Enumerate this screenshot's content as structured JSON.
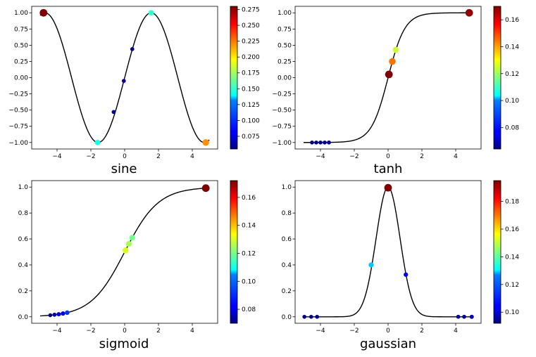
{
  "chart_data": [
    {
      "type": "line",
      "title": "",
      "xlabel": "sine",
      "ylabel": "",
      "function": "sine",
      "xlim": [
        -5.5,
        5.5
      ],
      "ylim": [
        -1.1,
        1.1
      ],
      "xticks": [
        -4,
        -2,
        0,
        2,
        4
      ],
      "yticks": [
        -1.0,
        -0.75,
        -0.5,
        -0.25,
        0.0,
        0.25,
        0.5,
        0.75,
        1.0
      ],
      "ytick_labels": [
        "−1.00",
        "−0.75",
        "−0.50",
        "−0.25",
        "0.00",
        "0.25",
        "0.50",
        "0.75",
        "1.00"
      ],
      "xtick_labels": [
        "−4",
        "−2",
        "0",
        "2",
        "4"
      ],
      "curve_range": [
        -5,
        5
      ],
      "colorbar": {
        "min": 0.055,
        "max": 0.28,
        "ticks": [
          0.075,
          0.1,
          0.125,
          0.15,
          0.175,
          0.2,
          0.225,
          0.25,
          0.275
        ],
        "tick_labels": [
          "0.075",
          "0.100",
          "0.125",
          "0.150",
          "0.175",
          "0.200",
          "0.225",
          "0.250",
          "0.275"
        ],
        "colormap": "jet"
      },
      "points": [
        {
          "x": -4.8,
          "y": 1.0,
          "c": 0.28
        },
        {
          "x": -1.6,
          "y": -1.0,
          "c": 0.145
        },
        {
          "x": -0.65,
          "y": -0.53,
          "c": 0.062
        },
        {
          "x": -0.05,
          "y": -0.05,
          "c": 0.06
        },
        {
          "x": 0.45,
          "y": 0.44,
          "c": 0.06
        },
        {
          "x": 1.57,
          "y": 1.0,
          "c": 0.15
        },
        {
          "x": 4.8,
          "y": -1.0,
          "c": 0.22
        }
      ]
    },
    {
      "type": "line",
      "title": "",
      "xlabel": "tanh",
      "ylabel": "",
      "function": "tanh",
      "xlim": [
        -5.5,
        5.5
      ],
      "ylim": [
        -1.1,
        1.1
      ],
      "xticks": [
        -4,
        -2,
        0,
        2,
        4
      ],
      "yticks": [
        -1.0,
        -0.75,
        -0.5,
        -0.25,
        0.0,
        0.25,
        0.5,
        0.75,
        1.0
      ],
      "ytick_labels": [
        "−1.00",
        "−0.75",
        "−0.50",
        "−0.25",
        "0.00",
        "0.25",
        "0.50",
        "0.75",
        "1.00"
      ],
      "xtick_labels": [
        "−4",
        "−2",
        "0",
        "2",
        "4"
      ],
      "curve_range": [
        -5,
        5
      ],
      "colorbar": {
        "min": 0.064,
        "max": 0.17,
        "ticks": [
          0.08,
          0.1,
          0.12,
          0.14,
          0.16
        ],
        "tick_labels": [
          "0.08",
          "0.10",
          "0.12",
          "0.14",
          "0.16"
        ],
        "colormap": "jet"
      },
      "points": [
        {
          "x": -4.5,
          "y": -1.0,
          "c": 0.064
        },
        {
          "x": -4.25,
          "y": -1.0,
          "c": 0.064
        },
        {
          "x": -4.0,
          "y": -1.0,
          "c": 0.065
        },
        {
          "x": -3.75,
          "y": -1.0,
          "c": 0.065
        },
        {
          "x": -3.5,
          "y": -1.0,
          "c": 0.066
        },
        {
          "x": 0.05,
          "y": 0.05,
          "c": 0.17
        },
        {
          "x": 0.25,
          "y": 0.25,
          "c": 0.145
        },
        {
          "x": 0.45,
          "y": 0.43,
          "c": 0.125
        },
        {
          "x": 4.8,
          "y": 1.0,
          "c": 0.168
        }
      ]
    },
    {
      "type": "line",
      "title": "",
      "xlabel": "sigmoid",
      "ylabel": "",
      "function": "sigmoid",
      "xlim": [
        -5.5,
        5.5
      ],
      "ylim": [
        -0.05,
        1.05
      ],
      "xticks": [
        -4,
        -2,
        0,
        2,
        4
      ],
      "yticks": [
        0.0,
        0.2,
        0.4,
        0.6,
        0.8,
        1.0
      ],
      "ytick_labels": [
        "0.0",
        "0.2",
        "0.4",
        "0.6",
        "0.8",
        "1.0"
      ],
      "xtick_labels": [
        "−4",
        "−2",
        "0",
        "2",
        "4"
      ],
      "curve_range": [
        -5,
        5
      ],
      "colorbar": {
        "min": 0.07,
        "max": 0.172,
        "ticks": [
          0.08,
          0.1,
          0.12,
          0.14,
          0.16
        ],
        "tick_labels": [
          "0.08",
          "0.10",
          "0.12",
          "0.14",
          "0.16"
        ],
        "colormap": "jet"
      },
      "points": [
        {
          "x": -4.4,
          "y": 0.012,
          "c": 0.07
        },
        {
          "x": -4.15,
          "y": 0.016,
          "c": 0.074
        },
        {
          "x": -3.9,
          "y": 0.02,
          "c": 0.078
        },
        {
          "x": -3.65,
          "y": 0.025,
          "c": 0.082
        },
        {
          "x": -3.4,
          "y": 0.032,
          "c": 0.088
        },
        {
          "x": 0.05,
          "y": 0.512,
          "c": 0.13
        },
        {
          "x": 0.25,
          "y": 0.562,
          "c": 0.125
        },
        {
          "x": 0.45,
          "y": 0.61,
          "c": 0.12
        },
        {
          "x": 4.8,
          "y": 0.992,
          "c": 0.172
        }
      ]
    },
    {
      "type": "line",
      "title": "",
      "xlabel": "gaussian",
      "ylabel": "",
      "function": "gaussian",
      "xlim": [
        -5.5,
        5.5
      ],
      "ylim": [
        -0.05,
        1.05
      ],
      "xticks": [
        -4,
        -2,
        0,
        2,
        4
      ],
      "yticks": [
        0.0,
        0.2,
        0.4,
        0.6,
        0.8,
        1.0
      ],
      "ytick_labels": [
        "0.0",
        "0.2",
        "0.4",
        "0.6",
        "0.8",
        "1.0"
      ],
      "xtick_labels": [
        "−4",
        "−2",
        "0",
        "2",
        "4"
      ],
      "curve_range": [
        -5,
        5
      ],
      "colorbar": {
        "min": 0.092,
        "max": 0.195,
        "ticks": [
          0.1,
          0.12,
          0.14,
          0.16,
          0.18
        ],
        "tick_labels": [
          "0.10",
          "0.12",
          "0.14",
          "0.16",
          "0.18"
        ],
        "colormap": "jet"
      },
      "points": [
        {
          "x": -4.95,
          "y": 0.0,
          "c": 0.093
        },
        {
          "x": -4.55,
          "y": 0.0,
          "c": 0.093
        },
        {
          "x": -4.2,
          "y": 0.0,
          "c": 0.093
        },
        {
          "x": -1.0,
          "y": 0.4,
          "c": 0.125
        },
        {
          "x": 0.0,
          "y": 0.995,
          "c": 0.195
        },
        {
          "x": 1.05,
          "y": 0.325,
          "c": 0.105
        },
        {
          "x": 4.15,
          "y": 0.0,
          "c": 0.094
        },
        {
          "x": 4.5,
          "y": 0.0,
          "c": 0.094
        },
        {
          "x": 4.95,
          "y": 0.0,
          "c": 0.098
        }
      ]
    }
  ]
}
